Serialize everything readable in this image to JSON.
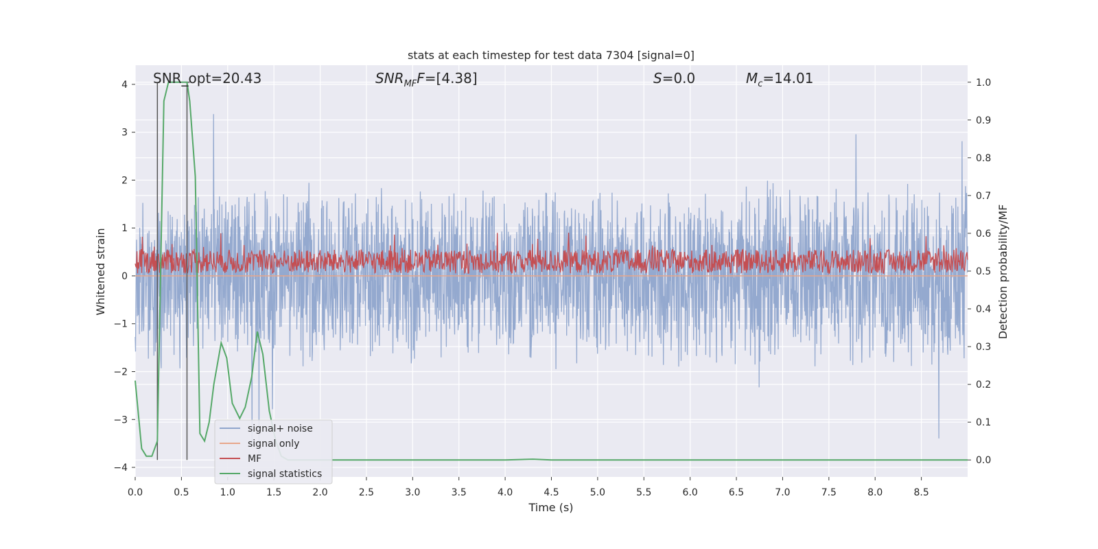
{
  "chart_data": {
    "type": "line",
    "title": "stats at each timestep for test data 7304 [signal=0]",
    "xlabel": "Time (s)",
    "ylabel_left": "Whitened strain",
    "ylabel_right": "Detection probability/MF",
    "xlim": [
      0,
      9
    ],
    "ylim_left": [
      -4.2,
      4.4
    ],
    "ylim_right": [
      -0.045,
      1.045
    ],
    "x_ticks": [
      "0.0",
      "0.5",
      "1.0",
      "1.5",
      "2.0",
      "2.5",
      "3.0",
      "3.5",
      "4.0",
      "4.5",
      "5.0",
      "5.5",
      "6.0",
      "6.5",
      "7.0",
      "7.5",
      "8.0",
      "8.5"
    ],
    "y_ticks_left": [
      "−4",
      "−3",
      "−2",
      "−1",
      "0",
      "1",
      "2",
      "3",
      "4"
    ],
    "y_ticks_right": [
      "0.0",
      "0.1",
      "0.2",
      "0.3",
      "0.4",
      "0.5",
      "0.6",
      "0.7",
      "0.8",
      "0.9",
      "1.0"
    ],
    "grid": true,
    "legend_position": "lower-left",
    "annotations": {
      "snr_opt": "SNR_opt=20.43",
      "snr_mf_label": "SNR",
      "snr_mf_sub": "MF",
      "snr_mf_value": "=[4.38]",
      "s_label": "S",
      "s_value": "=0.0",
      "mc_label": "M",
      "mc_sub": "c",
      "mc_value": "=14.01"
    },
    "vertical_markers_x": [
      0.24,
      0.56
    ],
    "series": [
      {
        "name": "signal+ noise",
        "color": "#8fa5cc",
        "axis": "left",
        "description_values": "whitened strain noise, amplitude about ±1.8 with peaks to ±4",
        "summary": {
          "min": -3.7,
          "max": 4.0,
          "mean": 0.0
        }
      },
      {
        "name": "signal only",
        "color": "#e8a68a",
        "axis": "left",
        "x": [
          0,
          9
        ],
        "y": [
          0.0,
          0.0
        ]
      },
      {
        "name": "MF",
        "color": "#c44e52",
        "axis": "left",
        "summary": {
          "min": 0.0,
          "max": 1.0,
          "mean": 0.3
        }
      },
      {
        "name": "signal statistics",
        "color": "#55a868",
        "axis": "right",
        "x": [
          0.0,
          0.07,
          0.12,
          0.18,
          0.24,
          0.31,
          0.36,
          0.42,
          0.5,
          0.56,
          0.59,
          0.65,
          0.7,
          0.75,
          0.8,
          0.85,
          0.93,
          0.99,
          1.05,
          1.13,
          1.19,
          1.26,
          1.32,
          1.38,
          1.45,
          1.52,
          1.58,
          1.65,
          1.75,
          2.0,
          3.0,
          4.0,
          4.3,
          4.5,
          5.0,
          9.0
        ],
        "y": [
          0.21,
          0.03,
          0.01,
          0.01,
          0.05,
          0.95,
          1.0,
          1.0,
          1.0,
          1.0,
          0.95,
          0.75,
          0.07,
          0.05,
          0.1,
          0.2,
          0.31,
          0.27,
          0.15,
          0.11,
          0.14,
          0.22,
          0.34,
          0.28,
          0.13,
          0.05,
          0.01,
          0.0,
          0.0,
          0.0,
          0.0,
          0.0,
          0.002,
          0.0,
          0.0,
          0.0
        ]
      }
    ]
  }
}
